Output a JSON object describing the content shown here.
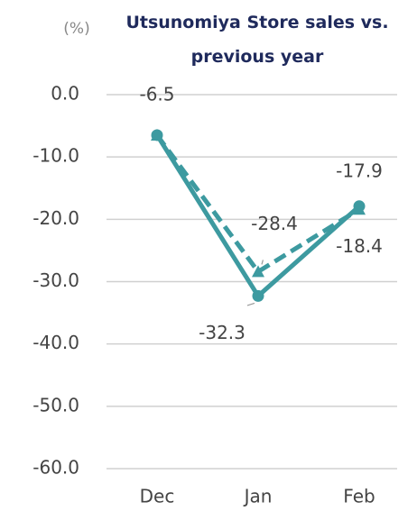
{
  "chart_data": {
    "type": "line",
    "title": "Utsunomiya Store sales vs. previous year",
    "y_unit": "(%)",
    "categories": [
      "Dec",
      "Jan",
      "Feb"
    ],
    "series": [
      {
        "color": "#3d9aa0",
        "line_style": "solid",
        "marker": "circle",
        "values": [
          -6.5,
          -32.3,
          -17.9
        ]
      },
      {
        "color": "#3d9aa0",
        "line_style": "dashed",
        "marker": "triangle",
        "values": [
          -6.5,
          -28.4,
          -18.4
        ],
        "value_labels": [
          null,
          "-28.4",
          "-18.4"
        ]
      }
    ],
    "ylim": [
      -60,
      0
    ],
    "yticks": [
      {
        "value": 0,
        "label": "0.0"
      },
      {
        "value": -10,
        "label": "-10.0"
      },
      {
        "value": -20,
        "label": "-20.0"
      },
      {
        "value": -30,
        "label": "-30.0"
      },
      {
        "value": -40,
        "label": "-40.0"
      },
      {
        "value": -50,
        "label": "-50.0"
      },
      {
        "value": -60,
        "label": "-60.0"
      }
    ],
    "grid": true
  }
}
